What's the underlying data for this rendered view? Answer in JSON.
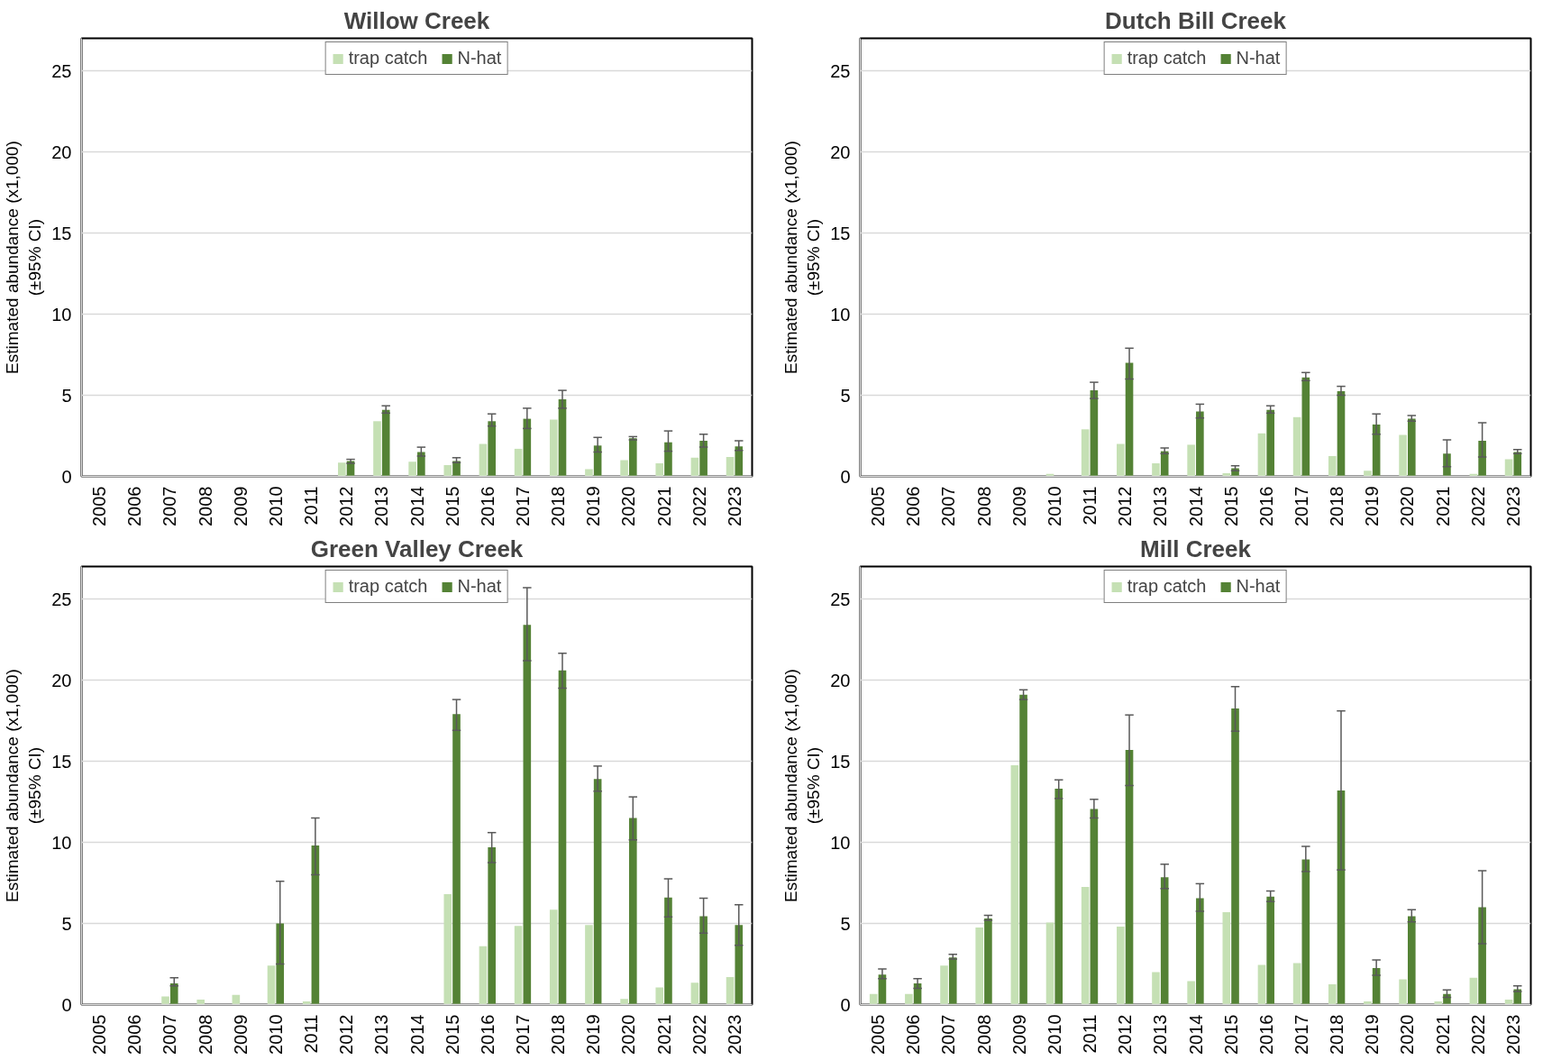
{
  "chart_data": [
    {
      "type": "bar",
      "title": "Willow Creek",
      "ylabel": "Estimated abundance (x1,000)\n(±95% CI)",
      "categories": [
        "2005",
        "2006",
        "2007",
        "2008",
        "2009",
        "2010",
        "2011",
        "2012",
        "2013",
        "2014",
        "2015",
        "2016",
        "2017",
        "2018",
        "2019",
        "2020",
        "2021",
        "2022",
        "2023"
      ],
      "ylim": [
        0,
        27
      ],
      "yticks": [
        0,
        5,
        10,
        15,
        20,
        25
      ],
      "grid": "y",
      "legend": "top",
      "series": [
        {
          "name": "trap catch",
          "color": "#c5e0b4",
          "values": [
            null,
            null,
            null,
            null,
            null,
            null,
            null,
            0.85,
            3.4,
            0.9,
            0.7,
            2.0,
            1.7,
            3.5,
            0.45,
            1.0,
            0.8,
            1.15,
            1.2
          ]
        },
        {
          "name": "N-hat",
          "color": "#548235",
          "values": [
            null,
            null,
            null,
            null,
            null,
            null,
            null,
            0.95,
            4.1,
            1.5,
            0.95,
            3.4,
            3.55,
            4.75,
            1.9,
            2.35,
            2.1,
            2.2,
            1.85
          ],
          "errors": [
            null,
            null,
            null,
            null,
            null,
            null,
            null,
            [
              0.8,
              1.05
            ],
            [
              3.9,
              4.35
            ],
            [
              1.25,
              1.8
            ],
            [
              0.85,
              1.15
            ],
            [
              3.1,
              3.85
            ],
            [
              2.95,
              4.2
            ],
            [
              4.2,
              5.3
            ],
            [
              1.5,
              2.4
            ],
            [
              2.25,
              2.45
            ],
            [
              1.55,
              2.8
            ],
            [
              1.8,
              2.6
            ],
            [
              1.6,
              2.2
            ]
          ]
        }
      ]
    },
    {
      "type": "bar",
      "title": "Dutch Bill Creek",
      "ylabel": "Estimated abundance (x1,000)\n(±95% CI)",
      "categories": [
        "2005",
        "2006",
        "2007",
        "2008",
        "2009",
        "2010",
        "2011",
        "2012",
        "2013",
        "2014",
        "2015",
        "2016",
        "2017",
        "2018",
        "2019",
        "2020",
        "2021",
        "2022",
        "2023"
      ],
      "ylim": [
        0,
        27
      ],
      "yticks": [
        0,
        5,
        10,
        15,
        20,
        25
      ],
      "grid": "y",
      "legend": "top",
      "series": [
        {
          "name": "trap catch",
          "color": "#c5e0b4",
          "values": [
            null,
            null,
            null,
            null,
            null,
            0.15,
            2.9,
            2.0,
            0.8,
            1.95,
            0.2,
            2.65,
            3.65,
            1.25,
            0.35,
            2.55,
            null,
            0.15,
            1.05
          ]
        },
        {
          "name": "N-hat",
          "color": "#548235",
          "values": [
            null,
            null,
            null,
            null,
            null,
            null,
            5.3,
            7.0,
            1.55,
            4.0,
            0.5,
            4.1,
            6.1,
            5.25,
            3.2,
            3.55,
            1.4,
            2.2,
            1.5
          ],
          "errors": [
            null,
            null,
            null,
            null,
            null,
            null,
            [
              4.8,
              5.8
            ],
            [
              6.0,
              7.9
            ],
            [
              1.4,
              1.75
            ],
            [
              3.6,
              4.45
            ],
            [
              0.35,
              0.65
            ],
            [
              3.9,
              4.35
            ],
            [
              5.9,
              6.4
            ],
            [
              5.0,
              5.55
            ],
            [
              2.6,
              3.85
            ],
            [
              3.4,
              3.75
            ],
            [
              0.6,
              2.25
            ],
            [
              1.2,
              3.3
            ],
            [
              1.4,
              1.65
            ]
          ]
        }
      ]
    },
    {
      "type": "bar",
      "title": "Green Valley Creek",
      "ylabel": "Estimated abundance (x1,000)\n(±95% CI)",
      "categories": [
        "2005",
        "2006",
        "2007",
        "2008",
        "2009",
        "2010",
        "2011",
        "2012",
        "2013",
        "2014",
        "2015",
        "2016",
        "2017",
        "2018",
        "2019",
        "2020",
        "2021",
        "2022",
        "2023"
      ],
      "ylim": [
        0,
        27
      ],
      "yticks": [
        0,
        5,
        10,
        15,
        20,
        25
      ],
      "grid": "y",
      "legend": "top",
      "series": [
        {
          "name": "trap catch",
          "color": "#c5e0b4",
          "values": [
            null,
            null,
            0.5,
            0.3,
            0.6,
            2.4,
            0.2,
            null,
            null,
            null,
            6.8,
            3.6,
            4.85,
            5.85,
            4.9,
            0.35,
            1.05,
            1.35,
            1.7
          ]
        },
        {
          "name": "N-hat",
          "color": "#548235",
          "values": [
            null,
            null,
            1.3,
            null,
            null,
            5.0,
            9.8,
            null,
            null,
            null,
            17.9,
            9.7,
            23.4,
            20.6,
            13.9,
            11.5,
            6.6,
            5.45,
            4.9
          ],
          "errors": [
            null,
            null,
            [
              1.15,
              1.65
            ],
            null,
            null,
            [
              2.5,
              7.6
            ],
            [
              8.0,
              11.5
            ],
            null,
            null,
            null,
            [
              16.9,
              18.8
            ],
            [
              8.75,
              10.6
            ],
            [
              21.2,
              25.7
            ],
            [
              19.5,
              21.65
            ],
            [
              13.15,
              14.7
            ],
            [
              10.15,
              12.8
            ],
            [
              5.4,
              7.75
            ],
            [
              4.4,
              6.55
            ],
            [
              3.65,
              6.15
            ]
          ]
        }
      ]
    },
    {
      "type": "bar",
      "title": "Mill Creek",
      "ylabel": "Estimated abundance (x1,000)\n(±95% CI)",
      "categories": [
        "2005",
        "2006",
        "2007",
        "2008",
        "2009",
        "2010",
        "2011",
        "2012",
        "2013",
        "2014",
        "2015",
        "2016",
        "2017",
        "2018",
        "2019",
        "2020",
        "2021",
        "2022",
        "2023"
      ],
      "ylim": [
        0,
        27
      ],
      "yticks": [
        0,
        5,
        10,
        15,
        20,
        25
      ],
      "grid": "y",
      "legend": "top",
      "series": [
        {
          "name": "trap catch",
          "color": "#c5e0b4",
          "values": [
            0.65,
            0.65,
            2.4,
            4.75,
            14.75,
            5.05,
            7.25,
            4.8,
            2.0,
            1.45,
            5.7,
            2.45,
            2.55,
            1.25,
            0.2,
            1.55,
            0.2,
            1.65,
            0.3
          ]
        },
        {
          "name": "N-hat",
          "color": "#548235",
          "values": [
            1.85,
            1.3,
            2.9,
            5.3,
            19.1,
            13.3,
            12.05,
            15.7,
            7.85,
            6.55,
            18.25,
            6.65,
            8.95,
            13.2,
            2.25,
            5.45,
            0.65,
            6.0,
            0.95
          ],
          "errors": [
            [
              1.6,
              2.2
            ],
            [
              1.0,
              1.6
            ],
            [
              2.8,
              3.1
            ],
            [
              5.2,
              5.5
            ],
            [
              18.8,
              19.4
            ],
            [
              12.7,
              13.85
            ],
            [
              11.5,
              12.65
            ],
            [
              13.5,
              17.85
            ],
            [
              7.15,
              8.65
            ],
            [
              5.75,
              7.45
            ],
            [
              16.85,
              19.6
            ],
            [
              6.35,
              7.0
            ],
            [
              8.2,
              9.75
            ],
            [
              8.3,
              18.1
            ],
            [
              1.8,
              2.75
            ],
            [
              5.1,
              5.85
            ],
            [
              0.45,
              0.9
            ],
            [
              3.75,
              8.25
            ],
            [
              0.8,
              1.15
            ]
          ]
        }
      ]
    }
  ]
}
